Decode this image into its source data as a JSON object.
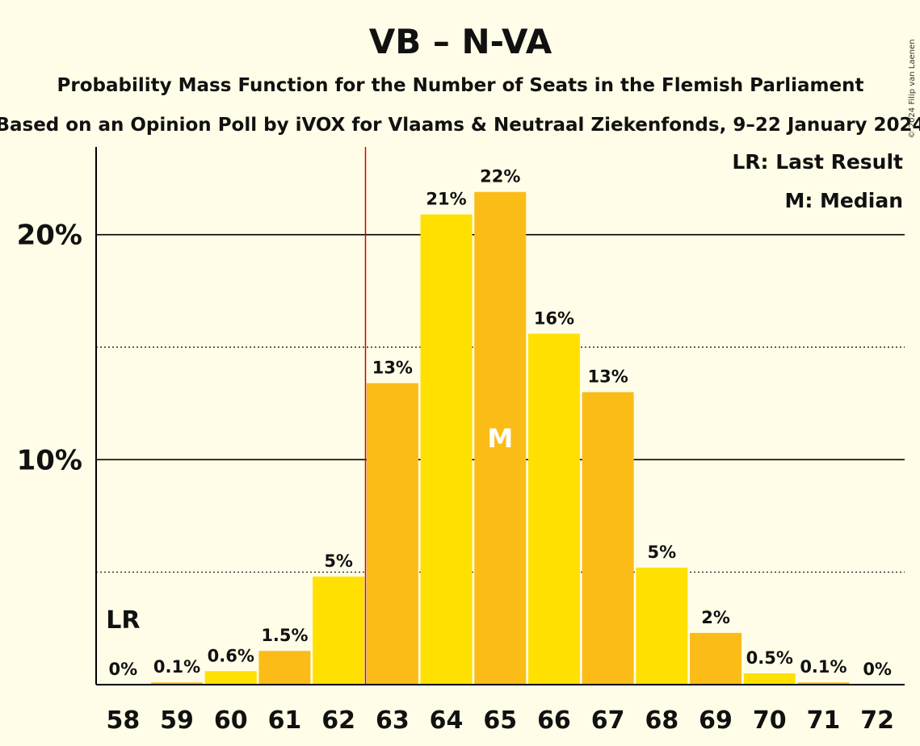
{
  "credit": "© 2024 Filip van Laenen",
  "chart_data": {
    "type": "bar",
    "title": "VB – N-VA",
    "subtitle1": "Probability Mass Function for the Number of Seats in the Flemish Parliament",
    "subtitle2": "Based on an Opinion Poll by iVOX for Vlaams & Neutraal Ziekenfonds, 9–22 January 2024",
    "categories": [
      58,
      59,
      60,
      61,
      62,
      63,
      64,
      65,
      66,
      67,
      68,
      69,
      70,
      71,
      72
    ],
    "values": [
      0,
      0.1,
      0.6,
      1.5,
      4.8,
      13.4,
      20.9,
      21.9,
      15.6,
      13.0,
      5.2,
      2.3,
      0.5,
      0.1,
      0
    ],
    "value_labels": [
      "0%",
      "0.1%",
      "0.6%",
      "1.5%",
      "5%",
      "13%",
      "21%",
      "22%",
      "16%",
      "13%",
      "5%",
      "2%",
      "0.5%",
      "0.1%",
      "0%"
    ],
    "ylim": [
      0,
      23.9
    ],
    "y_ticks": [
      10,
      20
    ],
    "y_tick_labels": [
      "10%",
      "20%"
    ],
    "dotted_gridlines": [
      5,
      15
    ],
    "last_result": 58,
    "last_result_label": "LR",
    "median": 65,
    "median_label": "M",
    "majority_line_after": 62,
    "legend": [
      "LR: Last Result",
      "M: Median"
    ],
    "colors": {
      "bar_a": "#FBBC18",
      "bar_b": "#FFE000",
      "median_text": "#FFFFFF",
      "majority_line": "#CC0000",
      "background": "#FFFDE7",
      "grid": "#000000"
    }
  }
}
